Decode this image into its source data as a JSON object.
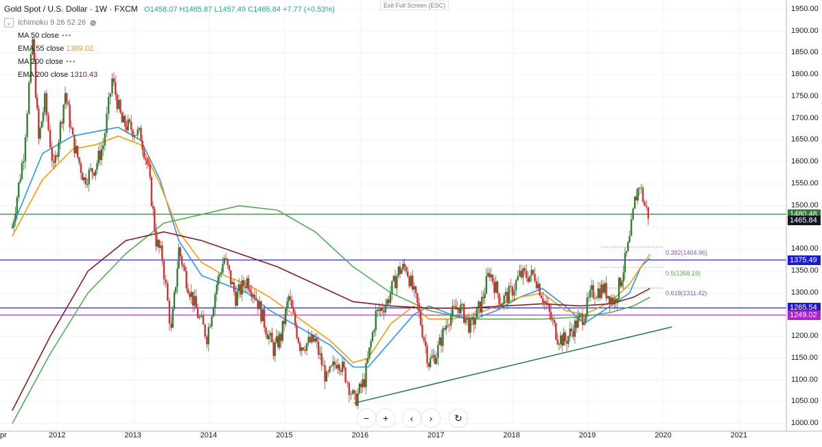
{
  "chart_data": {
    "type": "candlestick",
    "title": "Gold Spot / U.S. Dollar",
    "interval": "1W",
    "source": "FXCM",
    "ohlc": {
      "open_label": "O",
      "open": "1458.07",
      "high_label": "H",
      "high": "1465.87",
      "low_label": "L",
      "low": "1457.49",
      "close_label": "C",
      "close": "1465.84",
      "change": "+7.77 (+0.53%)"
    },
    "indicators": [
      {
        "name": "Ichimoku 9 26 52 26",
        "value": ""
      },
      {
        "name": "MA 50 close",
        "value": "",
        "color": "#1e88e5"
      },
      {
        "name": "EMA 55 close",
        "value": "1389.02",
        "color": "#ff9800"
      },
      {
        "name": "MA 200 close",
        "value": "",
        "color": "#4caf50"
      },
      {
        "name": "EMA 200 close",
        "value": "1310.43",
        "color": "#8b1a1a"
      }
    ],
    "y_ticks": [
      "1950.00",
      "1900.00",
      "1850.00",
      "1800.00",
      "1750.00",
      "1700.00",
      "1650.00",
      "1600.00",
      "1550.00",
      "1500.00",
      "1400.00",
      "1350.00",
      "1300.00",
      "1200.00",
      "1150.00",
      "1100.00",
      "1050.00",
      "1000.00"
    ],
    "y_range": [
      1000,
      1950
    ],
    "x_ticks": [
      "pr",
      "2012",
      "2013",
      "2014",
      "2015",
      "2016",
      "2017",
      "2018",
      "2019",
      "2020",
      "2021"
    ],
    "horizontal_lines": [
      {
        "price": "1480.48",
        "color": "#2e7d32"
      },
      {
        "price": "1375.49",
        "color": "#1a1ad6"
      },
      {
        "price": "1265.54",
        "color": "#1a1ad6"
      },
      {
        "price": "1249.02",
        "color": "#b11fd4"
      }
    ],
    "last_price_tag": {
      "price": "1465.84",
      "color": "#131722"
    },
    "fibonacci": [
      {
        "label": "0.382(1404.96)",
        "price": 1404.96,
        "color": "#7e57c2"
      },
      {
        "label": "0.5(1358.19)",
        "price": 1358.19,
        "color": "#4caf50"
      },
      {
        "label": "0.618(1311.42)",
        "price": 1311.42,
        "color": "#7e57c2"
      }
    ],
    "trendline": {
      "from": [
        "2016",
        1047
      ],
      "to": [
        "2020",
        1222
      ],
      "color": "#1b7a5a"
    },
    "price_path": [
      [
        "2011.4",
        1450
      ],
      [
        "2011.55",
        1620
      ],
      [
        "2011.67",
        1880
      ],
      [
        "2011.75",
        1650
      ],
      [
        "2011.83",
        1740
      ],
      [
        "2011.95",
        1580
      ],
      [
        "2012.1",
        1760
      ],
      [
        "2012.2",
        1650
      ],
      [
        "2012.35",
        1560
      ],
      [
        "2012.5",
        1590
      ],
      [
        "2012.6",
        1640
      ],
      [
        "2012.72",
        1790
      ],
      [
        "2012.85",
        1690
      ],
      [
        "2012.95",
        1680
      ],
      [
        "2013.1",
        1660
      ],
      [
        "2013.2",
        1580
      ],
      [
        "2013.3",
        1420
      ],
      [
        "2013.38",
        1380
      ],
      [
        "2013.5",
        1210
      ],
      [
        "2013.6",
        1400
      ],
      [
        "2013.7",
        1330
      ],
      [
        "2013.85",
        1250
      ],
      [
        "2013.97",
        1200
      ],
      [
        "2014.1",
        1320
      ],
      [
        "2014.2",
        1380
      ],
      [
        "2014.35",
        1290
      ],
      [
        "2014.5",
        1330
      ],
      [
        "2014.6",
        1300
      ],
      [
        "2014.75",
        1220
      ],
      [
        "2014.85",
        1170
      ],
      [
        "2014.95",
        1200
      ],
      [
        "2015.05",
        1290
      ],
      [
        "2015.2",
        1180
      ],
      [
        "2015.4",
        1190
      ],
      [
        "2015.55",
        1100
      ],
      [
        "2015.7",
        1150
      ],
      [
        "2015.8",
        1110
      ],
      [
        "2015.92",
        1050
      ],
      [
        "2016.05",
        1100
      ],
      [
        "2016.2",
        1250
      ],
      [
        "2016.35",
        1280
      ],
      [
        "2016.5",
        1350
      ],
      [
        "2016.6",
        1360
      ],
      [
        "2016.75",
        1270
      ],
      [
        "2016.9",
        1140
      ],
      [
        "2017.0",
        1160
      ],
      [
        "2017.15",
        1240
      ],
      [
        "2017.3",
        1270
      ],
      [
        "2017.45",
        1220
      ],
      [
        "2017.6",
        1280
      ],
      [
        "2017.7",
        1350
      ],
      [
        "2017.85",
        1280
      ],
      [
        "2017.98",
        1300
      ],
      [
        "2018.1",
        1340
      ],
      [
        "2018.3",
        1340
      ],
      [
        "2018.45",
        1270
      ],
      [
        "2018.6",
        1200
      ],
      [
        "2018.7",
        1190
      ],
      [
        "2018.85",
        1230
      ],
      [
        "2018.95",
        1250
      ],
      [
        "2019.05",
        1300
      ],
      [
        "2019.2",
        1310
      ],
      [
        "2019.35",
        1280
      ],
      [
        "2019.45",
        1340
      ],
      [
        "2019.55",
        1420
      ],
      [
        "2019.62",
        1510
      ],
      [
        "2019.68",
        1550
      ],
      [
        "2019.75",
        1500
      ],
      [
        "2019.82",
        1470
      ]
    ],
    "ma_lines": {
      "ma50": [
        [
          "2011.4",
          1450
        ],
        [
          "2011.8",
          1620
        ],
        [
          "2012.2",
          1660
        ],
        [
          "2012.5",
          1670
        ],
        [
          "2012.8",
          1680
        ],
        [
          "2013.1",
          1650
        ],
        [
          "2013.35",
          1560
        ],
        [
          "2013.6",
          1420
        ],
        [
          "2013.9",
          1340
        ],
        [
          "2014.2",
          1320
        ],
        [
          "2014.5",
          1300
        ],
        [
          "2014.8",
          1260
        ],
        [
          "2015.2",
          1220
        ],
        [
          "2015.6",
          1180
        ],
        [
          "2015.9",
          1130
        ],
        [
          "2016.1",
          1130
        ],
        [
          "2016.4",
          1190
        ],
        [
          "2016.7",
          1250
        ],
        [
          "2016.9",
          1270
        ],
        [
          "2017.2",
          1250
        ],
        [
          "2017.5",
          1240
        ],
        [
          "2017.8",
          1260
        ],
        [
          "2018.1",
          1290
        ],
        [
          "2018.4",
          1310
        ],
        [
          "2018.7",
          1270
        ],
        [
          "2018.95",
          1230
        ],
        [
          "2019.3",
          1270
        ],
        [
          "2019.55",
          1300
        ],
        [
          "2019.7",
          1360
        ],
        [
          "2019.82",
          1380
        ]
      ],
      "ema55": [
        [
          "2011.4",
          1430
        ],
        [
          "2011.8",
          1560
        ],
        [
          "2012.2",
          1630
        ],
        [
          "2012.5",
          1640
        ],
        [
          "2012.8",
          1660
        ],
        [
          "2013.1",
          1640
        ],
        [
          "2013.35",
          1550
        ],
        [
          "2013.6",
          1440
        ],
        [
          "2013.9",
          1370
        ],
        [
          "2014.2",
          1340
        ],
        [
          "2014.5",
          1320
        ],
        [
          "2014.8",
          1290
        ],
        [
          "2015.2",
          1240
        ],
        [
          "2015.6",
          1190
        ],
        [
          "2015.9",
          1140
        ],
        [
          "2016.1",
          1150
        ],
        [
          "2016.4",
          1230
        ],
        [
          "2016.7",
          1270
        ],
        [
          "2016.9",
          1240
        ],
        [
          "2017.2",
          1240
        ],
        [
          "2017.5",
          1250
        ],
        [
          "2017.8",
          1270
        ],
        [
          "2018.1",
          1290
        ],
        [
          "2018.4",
          1300
        ],
        [
          "2018.7",
          1260
        ],
        [
          "2018.95",
          1250
        ],
        [
          "2019.3",
          1280
        ],
        [
          "2019.55",
          1320
        ],
        [
          "2019.7",
          1360
        ],
        [
          "2019.82",
          1389
        ]
      ],
      "ma200": [
        [
          "2011.4",
          1000
        ],
        [
          "2011.9",
          1160
        ],
        [
          "2012.4",
          1300
        ],
        [
          "2012.9",
          1390
        ],
        [
          "2013.4",
          1460
        ],
        [
          "2013.9",
          1480
        ],
        [
          "2014.4",
          1500
        ],
        [
          "2014.9",
          1490
        ],
        [
          "2015.4",
          1440
        ],
        [
          "2015.9",
          1360
        ],
        [
          "2016.4",
          1300
        ],
        [
          "2016.9",
          1260
        ],
        [
          "2017.4",
          1240
        ],
        [
          "2017.9",
          1240
        ],
        [
          "2018.4",
          1240
        ],
        [
          "2018.9",
          1245
        ],
        [
          "2019.3",
          1255
        ],
        [
          "2019.6",
          1270
        ],
        [
          "2019.82",
          1290
        ]
      ],
      "ema200": [
        [
          "2011.4",
          1030
        ],
        [
          "2011.9",
          1200
        ],
        [
          "2012.4",
          1350
        ],
        [
          "2012.9",
          1420
        ],
        [
          "2013.4",
          1440
        ],
        [
          "2013.9",
          1420
        ],
        [
          "2014.4",
          1390
        ],
        [
          "2014.9",
          1360
        ],
        [
          "2015.4",
          1320
        ],
        [
          "2015.9",
          1280
        ],
        [
          "2016.4",
          1270
        ],
        [
          "2016.9",
          1265
        ],
        [
          "2017.4",
          1265
        ],
        [
          "2017.9",
          1270
        ],
        [
          "2018.4",
          1275
        ],
        [
          "2018.9",
          1270
        ],
        [
          "2019.3",
          1275
        ],
        [
          "2019.6",
          1290
        ],
        [
          "2019.82",
          1310
        ]
      ]
    }
  },
  "ui": {
    "exit_fullscreen": "Exit Full Screen (ESC)",
    "controls": [
      "−",
      "+",
      "‹",
      "›",
      "↻"
    ]
  }
}
